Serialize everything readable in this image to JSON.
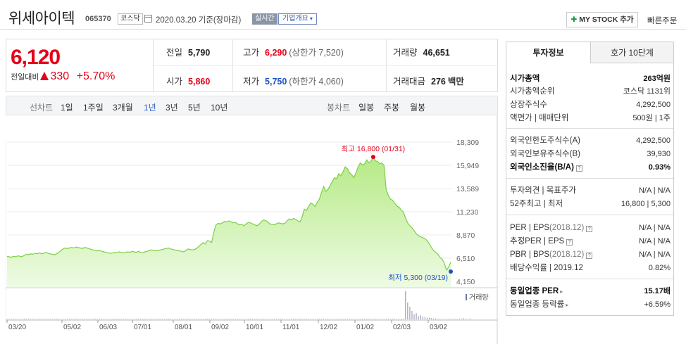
{
  "header": {
    "stock_name": "위세아이텍",
    "stock_code": "065370",
    "market": "코스닥",
    "date_text": "2020.03.20 기준(장마감)",
    "realtime_badge": "실시간",
    "overview_button": "기업개요",
    "mystock_label": "MY STOCK 추가",
    "quick_order": "빠른주문"
  },
  "price": {
    "current": "6,120",
    "change_label": "전일대비",
    "change": "330",
    "change_pct": "+5.70%"
  },
  "quote": {
    "prev_close_label": "전일",
    "prev_close": "5,790",
    "high_label": "고가",
    "high": "6,290",
    "upper_limit": "(상한가 7,520)",
    "volume_label": "거래량",
    "volume": "46,651",
    "open_label": "시가",
    "open": "5,860",
    "low_label": "저가",
    "low": "5,750",
    "lower_limit": "(하한가 4,060)",
    "amount_label": "거래대금",
    "amount": "276",
    "amount_unit": "백만"
  },
  "period_bar": {
    "line_chart_label": "선차트",
    "periods": [
      "1일",
      "1주일",
      "3개월",
      "1년",
      "3년",
      "5년",
      "10년"
    ],
    "active_period": "1년",
    "candle_chart_label": "봉차트",
    "candles": [
      "일봉",
      "주봉",
      "월봉"
    ]
  },
  "chart_data": {
    "type": "area",
    "y_ticks": [
      "18,309",
      "15,949",
      "13,589",
      "11,230",
      "8,870",
      "6,510",
      "4,150"
    ],
    "ylim": [
      4150,
      18309
    ],
    "x_ticks": [
      "03/20",
      "05/02",
      "06/03",
      "07/01",
      "08/01",
      "09/02",
      "10/01",
      "11/01",
      "12/02",
      "01/02",
      "02/03",
      "03/02"
    ],
    "max_label": "최고 16,800 (01/31)",
    "min_label": "최저 5,300 (03/19)",
    "volume_label": "거래량",
    "series": [
      {
        "values": [
          6700,
          6650,
          6600,
          6700,
          6650,
          6750,
          6700,
          6650,
          6800,
          6900,
          6850,
          6950,
          6900,
          7000,
          6950,
          7050,
          6950,
          7000,
          7100,
          7000,
          6950,
          6900,
          6850,
          6950,
          7100,
          7300,
          7450,
          7550,
          7500,
          7550,
          7600,
          7550,
          7650,
          7600,
          7550,
          7500,
          7600,
          7550,
          7500,
          7400,
          7350,
          7300,
          7250,
          7300,
          7200,
          7150,
          7100,
          7050,
          7000,
          7050,
          7100,
          7050,
          7150,
          7100,
          7050,
          7100,
          7150,
          7100,
          7200,
          7150,
          7100,
          7200,
          7100,
          7050,
          7150,
          7200,
          7300,
          7350,
          7300,
          7250,
          7300,
          7350,
          7400,
          7450,
          7500,
          7550,
          7450,
          7400,
          7350,
          7300,
          7250,
          7200,
          7150,
          7300,
          7450,
          7400,
          7350,
          7400,
          7500,
          7700,
          7900,
          8100,
          7950,
          8300,
          8250,
          8100,
          9150,
          9900,
          10050,
          10000,
          10100,
          10250,
          10200,
          10300,
          10200,
          10100,
          10150,
          10000,
          9900,
          9950,
          9800,
          10000,
          10150,
          10100,
          10000,
          9900,
          9800,
          9950,
          10200,
          10400,
          10350,
          10200,
          10000,
          9950,
          9900,
          10000,
          10100,
          10050,
          10000,
          10050,
          10300,
          10500,
          10400,
          10550,
          10450,
          10300,
          10200,
          10700,
          11500,
          11350,
          11800,
          12100,
          12000,
          11750,
          12200,
          12500,
          13200,
          13800,
          13300,
          13500,
          13900,
          14300,
          14700,
          14600,
          15100,
          14900,
          15300,
          15800,
          15600,
          15200,
          15000,
          14700,
          15200,
          15800,
          16200,
          16000,
          16100,
          16500,
          16200,
          16400,
          16800,
          16400,
          16350,
          16100,
          16200,
          15950,
          13500,
          12900,
          12500,
          12400,
          12100,
          11800,
          11700,
          11400,
          11200,
          10600,
          10100,
          9800,
          9600,
          9300,
          9000,
          8800,
          8700,
          8600,
          8500,
          8300,
          8000,
          7600,
          7300,
          7100,
          6900,
          6600,
          6400,
          6000,
          5300,
          5600,
          6120
        ]
      }
    ],
    "volumes": [
      2,
      2,
      2,
      2,
      2,
      2,
      2,
      2,
      2,
      2,
      2,
      2,
      2,
      2,
      2,
      2,
      2,
      2,
      2,
      2,
      2,
      2,
      2,
      2,
      2,
      2,
      2,
      2,
      2,
      2,
      2,
      2,
      2,
      2,
      2,
      2,
      2,
      2,
      2,
      2,
      2,
      2,
      2,
      2,
      2,
      2,
      2,
      2,
      2,
      2,
      2,
      2,
      2,
      2,
      2,
      2,
      2,
      2,
      2,
      2,
      2,
      2,
      2,
      2,
      2,
      2,
      2,
      2,
      2,
      2,
      2,
      2,
      2,
      2,
      2,
      2,
      2,
      2,
      2,
      2,
      2,
      2,
      2,
      2,
      2,
      2,
      2,
      2,
      2,
      2,
      2,
      2,
      2,
      2,
      2,
      2,
      2,
      2,
      2,
      2,
      2,
      2,
      2,
      2,
      2,
      2,
      2,
      2,
      2,
      2,
      2,
      2,
      2,
      2,
      2,
      2,
      2,
      2,
      2,
      2,
      2,
      2,
      2,
      2,
      2,
      2,
      2,
      2,
      2,
      2,
      2,
      2,
      2,
      2,
      2,
      2,
      2,
      2,
      2,
      2,
      2,
      2,
      2,
      2,
      2,
      2,
      2,
      2,
      2,
      2,
      2,
      2,
      2,
      2,
      2,
      2,
      2,
      2,
      2,
      2,
      2,
      2,
      2,
      2,
      2,
      2,
      2,
      2,
      2,
      2,
      2,
      2,
      2,
      2,
      2,
      2,
      2,
      2,
      2,
      2,
      2,
      2,
      2,
      2,
      2,
      100,
      60,
      45,
      30,
      18,
      22,
      12,
      15,
      10,
      8,
      5,
      6,
      4,
      3,
      3,
      2,
      2,
      2,
      2,
      2,
      2,
      2,
      2,
      2,
      2,
      2,
      2,
      4,
      2,
      2,
      3
    ]
  },
  "right_panel": {
    "tabs": [
      "투자정보",
      "호가 10단계"
    ],
    "market_cap_label": "시가총액",
    "market_cap": "263억원",
    "market_cap_rank_label": "시가총액순위",
    "market_cap_rank": "코스닥 1131위",
    "shares_label": "상장주식수",
    "shares": "4,292,500",
    "par_label": "액면가 | 매매단위",
    "par": "500원 | 1주",
    "foreign_limit_label": "외국인한도주식수(A)",
    "foreign_limit": "4,292,500",
    "foreign_hold_label": "외국인보유주식수(B)",
    "foreign_hold": "39,930",
    "foreign_ratio_label": "외국인소진율(B/A)",
    "foreign_ratio": "0.93%",
    "opinion_label": "투자의견 | 목표주가",
    "opinion": "N/A | N/A",
    "w52_label": "52주최고 | 최저",
    "w52": "16,800 | 5,300",
    "per_label": "PER | EPS",
    "per_date": "(2018.12)",
    "per": "N/A | N/A",
    "est_per_label": "추정PER | EPS",
    "est_per": "N/A | N/A",
    "pbr_label": "PBR | BPS",
    "pbr_date": "(2018.12)",
    "pbr": "N/A | N/A",
    "dividend_label": "배당수익률 |",
    "dividend_date": "2019.12",
    "dividend": "0.82%",
    "sector_per_label": "동일업종 PER",
    "sector_per": "15.17배",
    "sector_change_label": "동일업종 등락률",
    "sector_change": "+6.59%"
  },
  "colors": {
    "up": "#e5001a",
    "down": "#1a53c6",
    "chart_fill": "#c8f0a8",
    "chart_line": "#7ccf46"
  }
}
